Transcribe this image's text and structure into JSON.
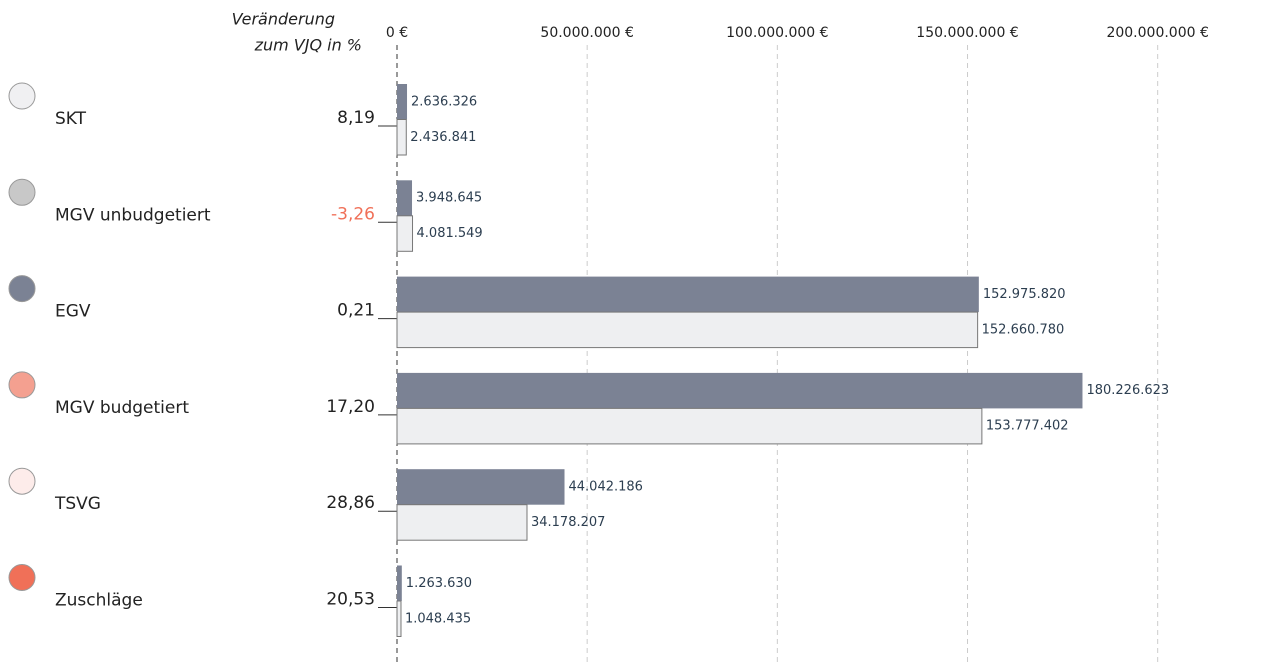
{
  "chart_data": {
    "type": "bar",
    "orientation": "horizontal",
    "categories": [
      "SKT",
      "MGV unbudgetiert",
      "EGV",
      "MGV budgetiert",
      "TSVG",
      "Zuschläge"
    ],
    "category_colors": [
      "#f0f0f2",
      "#c8c8c8",
      "#7b8294",
      "#f4a090",
      "#fdecea",
      "#f07058"
    ],
    "change_header": [
      "Veränderung",
      "zum VJQ in %"
    ],
    "change_values": [
      8.19,
      -3.26,
      0.21,
      17.2,
      28.86,
      20.53
    ],
    "change_labels": [
      "8,19",
      "-3,26",
      "0,21",
      "17,20",
      "28,86",
      "20,53"
    ],
    "negative_color": "#f07058",
    "series": [
      {
        "color": "#7b8294",
        "values": [
          2636326,
          3948645,
          152975820,
          180226623,
          44042186,
          1263630
        ],
        "value_labels": [
          "2.636.326",
          "3.948.645",
          "152.975.820",
          "180.226.623",
          "44.042.186",
          "1.263.630"
        ]
      },
      {
        "color": "#eeeff1",
        "values": [
          2436841,
          4081549,
          152660780,
          153777402,
          34178207,
          1048435
        ],
        "value_labels": [
          "2.436.841",
          "4.081.549",
          "152.660.780",
          "153.777.402",
          "34.178.207",
          "1.048.435"
        ]
      }
    ],
    "xlim": [
      0,
      234000000
    ],
    "xticks": [
      {
        "value": 0,
        "label": "0 €"
      },
      {
        "value": 50000000,
        "label": "50.000.000 €"
      },
      {
        "value": 100000000,
        "label": "100.000.000 €"
      },
      {
        "value": 150000000,
        "label": "150.000.000 €"
      },
      {
        "value": 200000000,
        "label": "200.000.000 €"
      }
    ],
    "grid": true
  }
}
